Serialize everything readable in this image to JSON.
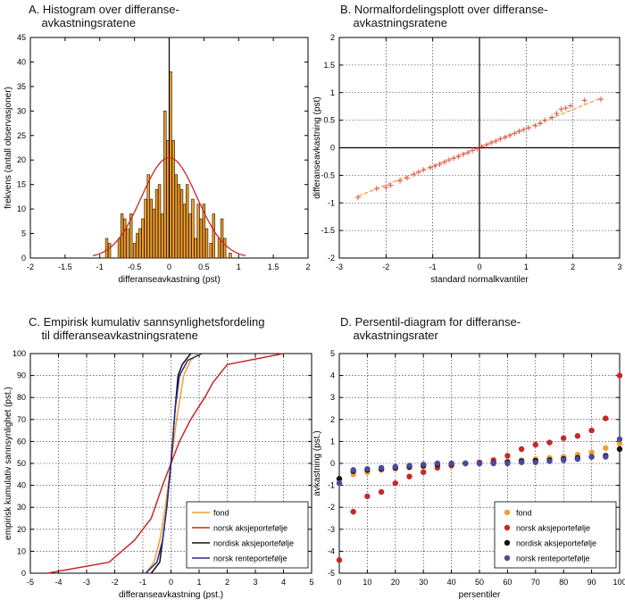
{
  "chart_data": [
    {
      "id": "A",
      "type": "bar",
      "title": "A. Histogram over differanse-\n    avkastningsratene",
      "xlabel": "differanseavkastning (pst)",
      "ylabel": "frekvens (antall observasjoner)",
      "xlim": [
        -2,
        2
      ],
      "ylim": [
        0,
        45
      ],
      "xticks": [
        -2,
        -1.5,
        -1,
        -0.5,
        0,
        0.5,
        1,
        1.5,
        2
      ],
      "yticks": [
        0,
        5,
        10,
        15,
        20,
        25,
        30,
        35,
        40,
        45
      ],
      "grid": false,
      "bar_color": "#f0a030",
      "curve_color": "#c62828",
      "bins": [
        {
          "x": -0.9,
          "count": 4
        },
        {
          "x": -0.86,
          "count": 3
        },
        {
          "x": -0.72,
          "count": 4
        },
        {
          "x": -0.68,
          "count": 9
        },
        {
          "x": -0.64,
          "count": 8
        },
        {
          "x": -0.6,
          "count": 6
        },
        {
          "x": -0.55,
          "count": 9
        },
        {
          "x": -0.5,
          "count": 3
        },
        {
          "x": -0.46,
          "count": 5
        },
        {
          "x": -0.42,
          "count": 6
        },
        {
          "x": -0.38,
          "count": 8
        },
        {
          "x": -0.34,
          "count": 12
        },
        {
          "x": -0.3,
          "count": 17
        },
        {
          "x": -0.26,
          "count": 12
        },
        {
          "x": -0.22,
          "count": 10
        },
        {
          "x": -0.18,
          "count": 14
        },
        {
          "x": -0.14,
          "count": 15
        },
        {
          "x": -0.1,
          "count": 9
        },
        {
          "x": -0.06,
          "count": 30
        },
        {
          "x": -0.02,
          "count": 24
        },
        {
          "x": 0.02,
          "count": 38
        },
        {
          "x": 0.06,
          "count": 24
        },
        {
          "x": 0.1,
          "count": 17
        },
        {
          "x": 0.14,
          "count": 15
        },
        {
          "x": 0.18,
          "count": 14
        },
        {
          "x": 0.22,
          "count": 11
        },
        {
          "x": 0.26,
          "count": 15
        },
        {
          "x": 0.3,
          "count": 9
        },
        {
          "x": 0.34,
          "count": 12
        },
        {
          "x": 0.38,
          "count": 4
        },
        {
          "x": 0.42,
          "count": 11
        },
        {
          "x": 0.46,
          "count": 8
        },
        {
          "x": 0.5,
          "count": 11
        },
        {
          "x": 0.54,
          "count": 6
        },
        {
          "x": 0.6,
          "count": 3
        },
        {
          "x": 0.64,
          "count": 9
        },
        {
          "x": 0.72,
          "count": 4
        },
        {
          "x": 0.76,
          "count": 8
        },
        {
          "x": 0.8,
          "count": 4
        },
        {
          "x": 0.88,
          "count": 1
        }
      ],
      "normal_fit": {
        "mean": 0.0,
        "sd": 0.4,
        "peak": 20.5
      }
    },
    {
      "id": "B",
      "type": "scatter",
      "title": "B. Normalfordelingsplott over differanse-\n    avkastningsratene",
      "xlabel": "standard normalkvantiler",
      "ylabel": "differanseavkastning (pst)",
      "xlim": [
        -3,
        3
      ],
      "ylim": [
        -2,
        2
      ],
      "xticks": [
        -3,
        -2,
        -1,
        0,
        1,
        2,
        3
      ],
      "yticks": [
        -2,
        -1.5,
        -1,
        -0.5,
        0,
        0.5,
        1,
        1.5,
        2
      ],
      "grid": true,
      "marker_color": "#e05050",
      "line_color": "#f0a030",
      "ref_line": [
        [
          -2.6,
          -0.88
        ],
        [
          2.6,
          0.9
        ]
      ],
      "points": [
        [
          -2.6,
          -0.9
        ],
        [
          -2.2,
          -0.74
        ],
        [
          -2.0,
          -0.72
        ],
        [
          -1.9,
          -0.68
        ],
        [
          -1.7,
          -0.6
        ],
        [
          -1.55,
          -0.55
        ],
        [
          -1.4,
          -0.48
        ],
        [
          -1.3,
          -0.44
        ],
        [
          -1.2,
          -0.4
        ],
        [
          -1.05,
          -0.36
        ],
        [
          -0.95,
          -0.33
        ],
        [
          -0.85,
          -0.3
        ],
        [
          -0.75,
          -0.26
        ],
        [
          -0.65,
          -0.22
        ],
        [
          -0.55,
          -0.19
        ],
        [
          -0.45,
          -0.16
        ],
        [
          -0.35,
          -0.12
        ],
        [
          -0.25,
          -0.09
        ],
        [
          -0.15,
          -0.05
        ],
        [
          -0.05,
          -0.02
        ],
        [
          0.05,
          0.02
        ],
        [
          0.15,
          0.05
        ],
        [
          0.25,
          0.09
        ],
        [
          0.35,
          0.12
        ],
        [
          0.45,
          0.16
        ],
        [
          0.55,
          0.19
        ],
        [
          0.65,
          0.22
        ],
        [
          0.75,
          0.26
        ],
        [
          0.85,
          0.3
        ],
        [
          0.95,
          0.33
        ],
        [
          1.05,
          0.36
        ],
        [
          1.2,
          0.4
        ],
        [
          1.3,
          0.44
        ],
        [
          1.4,
          0.5
        ],
        [
          1.55,
          0.55
        ],
        [
          1.65,
          0.62
        ],
        [
          1.75,
          0.7
        ],
        [
          1.85,
          0.72
        ],
        [
          1.95,
          0.76
        ],
        [
          2.25,
          0.86
        ],
        [
          2.6,
          0.88
        ]
      ]
    },
    {
      "id": "C",
      "type": "line",
      "title": "C. Empirisk kumulativ sannsynlighetsfordeling\n    til differanseavkastningsratene",
      "xlabel": "differanseavkastning (pst.)",
      "ylabel": "empirisk kumulativ sannsynlighet (pst.)",
      "xlim": [
        -5,
        5
      ],
      "ylim": [
        0,
        100
      ],
      "xticks": [
        -5,
        -4,
        -3,
        -2,
        -1,
        0,
        1,
        2,
        3,
        4,
        5
      ],
      "yticks": [
        0,
        10,
        20,
        30,
        40,
        50,
        60,
        70,
        80,
        90,
        100
      ],
      "grid": true,
      "legend_position": "bottom-right",
      "series": [
        {
          "name": "fond",
          "color": "#f0a030",
          "points": [
            [
              -0.9,
              0
            ],
            [
              -0.6,
              5
            ],
            [
              -0.4,
              15
            ],
            [
              -0.2,
              30
            ],
            [
              0,
              50
            ],
            [
              0.2,
              70
            ],
            [
              0.45,
              90
            ],
            [
              0.7,
              97
            ],
            [
              1.0,
              100
            ]
          ]
        },
        {
          "name": "norsk aksjeportefølje",
          "color": "#c62828",
          "points": [
            [
              -4.4,
              0
            ],
            [
              -2.2,
              5
            ],
            [
              -1.3,
              15
            ],
            [
              -0.7,
              25
            ],
            [
              -0.3,
              40
            ],
            [
              0,
              50
            ],
            [
              0.3,
              60
            ],
            [
              0.7,
              70
            ],
            [
              1.2,
              80
            ],
            [
              1.5,
              87
            ],
            [
              2.0,
              95
            ],
            [
              4.0,
              100
            ]
          ]
        },
        {
          "name": "nordisk aksjeportefølje",
          "color": "#111111",
          "points": [
            [
              -0.7,
              0
            ],
            [
              -0.4,
              5
            ],
            [
              -0.3,
              15
            ],
            [
              -0.15,
              30
            ],
            [
              0,
              50
            ],
            [
              0.15,
              75
            ],
            [
              0.25,
              90
            ],
            [
              0.4,
              95
            ],
            [
              0.7,
              100
            ]
          ]
        },
        {
          "name": "norsk renteportefølje",
          "color": "#2a2a8a",
          "points": [
            [
              -0.9,
              0
            ],
            [
              -0.5,
              5
            ],
            [
              -0.3,
              15
            ],
            [
              -0.15,
              30
            ],
            [
              0,
              50
            ],
            [
              0.15,
              75
            ],
            [
              0.3,
              90
            ],
            [
              0.6,
              97
            ],
            [
              1.1,
              100
            ]
          ]
        }
      ]
    },
    {
      "id": "D",
      "type": "scatter",
      "title": "D. Persentil-diagram for differanse-\n    avkastningsrater",
      "xlabel": "persentiler",
      "ylabel": "avkastning (pst.)",
      "xlim": [
        0,
        100
      ],
      "ylim": [
        -5,
        5
      ],
      "xticks": [
        0,
        10,
        20,
        30,
        40,
        50,
        60,
        70,
        80,
        90,
        100
      ],
      "yticks": [
        -5,
        -4,
        -3,
        -2,
        -1,
        0,
        1,
        2,
        3,
        4,
        5
      ],
      "grid": true,
      "legend_position": "bottom-right",
      "x": [
        0,
        5,
        10,
        15,
        20,
        25,
        30,
        35,
        40,
        45,
        50,
        55,
        60,
        65,
        70,
        75,
        80,
        85,
        90,
        95,
        100
      ],
      "series": [
        {
          "name": "fond",
          "color": "#f0a030",
          "values": [
            -0.9,
            -0.5,
            -0.4,
            -0.3,
            -0.25,
            -0.2,
            -0.15,
            -0.1,
            -0.05,
            0,
            0,
            0.05,
            0.1,
            0.15,
            0.2,
            0.25,
            0.3,
            0.4,
            0.5,
            0.7,
            0.9
          ]
        },
        {
          "name": "norsk aksjeportefølje",
          "color": "#c62828",
          "values": [
            -4.4,
            -2.2,
            -1.5,
            -1.3,
            -0.9,
            -0.6,
            -0.4,
            -0.2,
            -0.1,
            0,
            0.05,
            0.15,
            0.35,
            0.65,
            0.85,
            0.95,
            1.15,
            1.25,
            1.5,
            2.05,
            4.0
          ]
        },
        {
          "name": "nordisk aksjeportefølje",
          "color": "#111111",
          "values": [
            -0.7,
            -0.35,
            -0.3,
            -0.25,
            -0.2,
            -0.15,
            -0.1,
            -0.05,
            -0.02,
            0,
            0,
            0.02,
            0.05,
            0.1,
            0.12,
            0.15,
            0.2,
            0.25,
            0.3,
            0.35,
            0.65
          ]
        },
        {
          "name": "norsk renteportefølje",
          "color": "#4a4aa0",
          "values": [
            -0.9,
            -0.3,
            -0.25,
            -0.2,
            -0.15,
            -0.1,
            -0.05,
            0,
            0,
            0,
            0,
            0,
            0,
            0.05,
            0.05,
            0.1,
            0.15,
            0.2,
            0.3,
            0.3,
            1.1
          ]
        }
      ]
    }
  ]
}
